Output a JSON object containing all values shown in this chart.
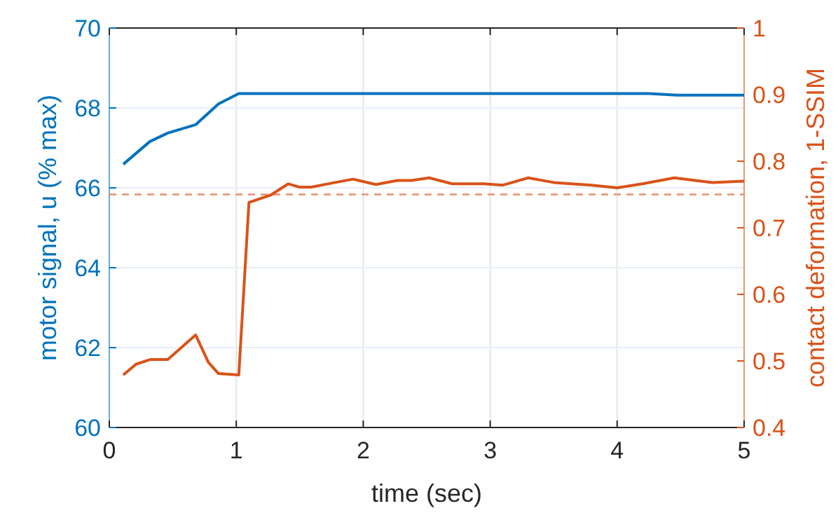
{
  "chart_data": {
    "type": "line",
    "xlabel": "time (sec)",
    "ylabel": "motor signal, u (% max)",
    "y2label": "contact deformation, 1-SSIM",
    "xlim": [
      0,
      5
    ],
    "xticks": [
      0,
      1,
      2,
      3,
      4,
      5
    ],
    "ylim": [
      60,
      70
    ],
    "yticks": [
      60,
      62,
      64,
      66,
      68,
      70
    ],
    "y2lim": [
      0.4,
      1
    ],
    "y2ticks": [
      0.4,
      0.5,
      0.6,
      0.7,
      0.8,
      0.9,
      1
    ],
    "grid": true,
    "line_style": "solid",
    "ref_lines": [
      {
        "axis": "y2",
        "value": 0.75,
        "color": "#e8906e",
        "line_style": "dashed"
      }
    ],
    "series": [
      {
        "color": "#0072bd",
        "x": [
          0.11,
          0.32,
          0.46,
          0.68,
          0.86,
          1.02,
          4.25,
          4.47,
          5
        ],
        "values": [
          66.59,
          67.16,
          67.37,
          67.58,
          68.1,
          68.36,
          68.36,
          68.32,
          68.32
        ]
      },
      {
        "color": "#d95319",
        "axis": "y2",
        "x": [
          0.11,
          0.21,
          0.32,
          0.46,
          0.68,
          0.78,
          0.86,
          1.02,
          1.1,
          1.27,
          1.41,
          1.5,
          1.59,
          1.75,
          1.92,
          2.1,
          2.27,
          2.38,
          2.52,
          2.7,
          2.95,
          3.1,
          3.3,
          3.5,
          3.8,
          4,
          4.2,
          4.45,
          4.75,
          5
        ],
        "values": [
          0.479,
          0.495,
          0.502,
          0.502,
          0.539,
          0.498,
          0.481,
          0.479,
          0.738,
          0.749,
          0.766,
          0.761,
          0.761,
          0.767,
          0.773,
          0.765,
          0.771,
          0.771,
          0.775,
          0.766,
          0.766,
          0.764,
          0.775,
          0.768,
          0.764,
          0.76,
          0.766,
          0.775,
          0.768,
          0.77
        ]
      }
    ]
  }
}
